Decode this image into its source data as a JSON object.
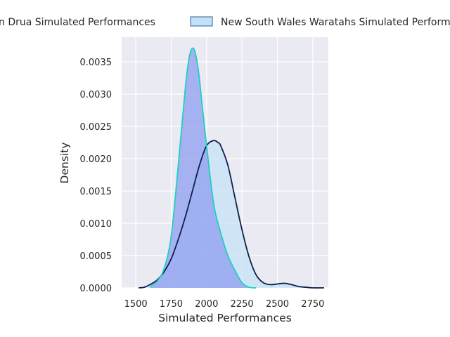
{
  "chart_data": {
    "type": "area",
    "xlabel": "Simulated Performances",
    "ylabel": "Density",
    "xlim": [
      1400,
      2860
    ],
    "ylim": [
      0,
      0.00388
    ],
    "x_ticks": [
      1500,
      1750,
      2000,
      2250,
      2500,
      2750
    ],
    "x_tick_labels": [
      "1500",
      "1750",
      "2000",
      "2250",
      "2500",
      "2750"
    ],
    "y_ticks": [
      0,
      0.0005,
      0.001,
      0.0015,
      0.002,
      0.0025,
      0.003,
      0.0035
    ],
    "y_tick_labels": [
      "0.0000",
      "0.0005",
      "0.0010",
      "0.0015",
      "0.0020",
      "0.0025",
      "0.0030",
      "0.0035"
    ],
    "grid": true,
    "legend_position": "top",
    "series": [
      {
        "name": "n Drua Simulated Performances",
        "line_color": "#1fd0c0",
        "fill_color": "#8f9df0",
        "x": [
          1600,
          1650,
          1700,
          1750,
          1800,
          1850,
          1880,
          1910,
          1940,
          1970,
          2000,
          2050,
          2100,
          2150,
          2200,
          2250,
          2300,
          2350
        ],
        "y": [
          2e-05,
          0.0001,
          0.0003,
          0.0008,
          0.0019,
          0.0031,
          0.0036,
          0.0037,
          0.0034,
          0.0028,
          0.0022,
          0.0013,
          0.00085,
          0.0005,
          0.00027,
          8e-05,
          1e-05,
          0.0
        ]
      },
      {
        "name": "New South Wales Waratahs Simulated Performances",
        "line_color": "#0f1f4e",
        "fill_color": "#c3e2f7",
        "x": [
          1520,
          1560,
          1600,
          1650,
          1700,
          1750,
          1800,
          1850,
          1900,
          1950,
          2000,
          2050,
          2080,
          2100,
          2150,
          2200,
          2250,
          2300,
          2350,
          2400,
          2450,
          2500,
          2550,
          2600,
          2650,
          2700,
          2750,
          2830
        ],
        "y": [
          0.0,
          1e-05,
          5e-05,
          0.00012,
          0.00025,
          0.00045,
          0.00075,
          0.0011,
          0.0015,
          0.0019,
          0.0022,
          0.00228,
          0.00225,
          0.0022,
          0.0019,
          0.0014,
          0.0009,
          0.00048,
          0.0002,
          8e-05,
          5e-05,
          6e-05,
          7e-05,
          5e-05,
          2e-05,
          1e-05,
          0.0,
          0.0
        ]
      }
    ]
  }
}
